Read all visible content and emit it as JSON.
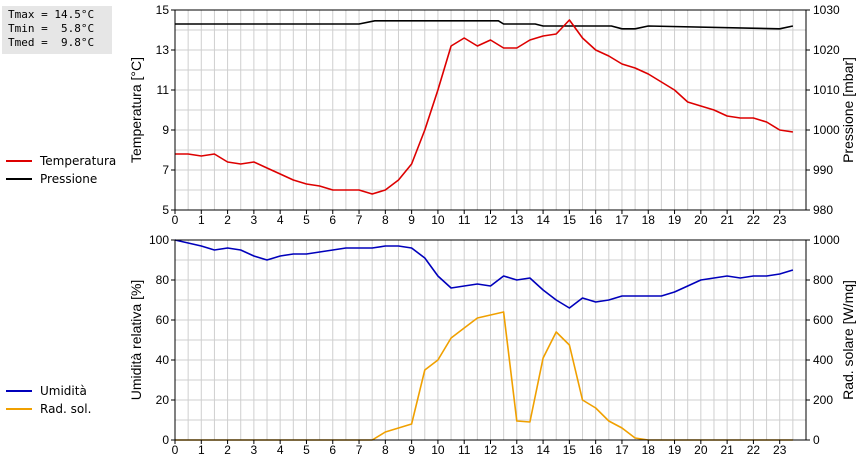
{
  "stats": {
    "tmax": "Tmax = 14.5°C",
    "tmin": "Tmin =  5.8°C",
    "tmed": "Tmed =  9.8°C"
  },
  "chart_data": [
    {
      "type": "line",
      "ylabel": "Temperatura [°C]",
      "y2label": "Pressione [mbar]",
      "xlim": [
        0,
        24
      ],
      "ylim": [
        5,
        15
      ],
      "y2lim": [
        980,
        1030
      ],
      "x_ticks": [
        0,
        1,
        2,
        3,
        4,
        5,
        6,
        7,
        8,
        9,
        10,
        11,
        12,
        13,
        14,
        15,
        16,
        17,
        18,
        19,
        20,
        21,
        22,
        23
      ],
      "y_ticks": [
        5,
        7,
        9,
        11,
        13,
        15
      ],
      "y2_ticks": [
        980,
        990,
        1000,
        1010,
        1020,
        1030
      ],
      "grid": true,
      "legend_position": "left",
      "series": [
        {
          "name": "Temperatura",
          "axis": "left",
          "color": "#dd0000",
          "x": [
            0,
            0.5,
            1,
            1.5,
            2,
            2.5,
            3,
            3.5,
            4,
            4.5,
            5,
            5.5,
            6,
            6.5,
            7,
            7.5,
            8,
            8.5,
            9,
            9.5,
            10,
            10.5,
            11,
            11.5,
            12,
            12.5,
            13,
            13.5,
            14,
            14.5,
            15,
            15.5,
            16,
            16.5,
            17,
            17.5,
            18,
            18.5,
            19,
            19.5,
            20,
            20.5,
            21,
            21.5,
            22,
            22.5,
            23,
            23.5
          ],
          "values": [
            7.8,
            7.8,
            7.7,
            7.8,
            7.4,
            7.3,
            7.4,
            7.1,
            6.8,
            6.5,
            6.3,
            6.2,
            6.0,
            6.0,
            6.0,
            5.8,
            6.0,
            6.5,
            7.3,
            9.0,
            11.0,
            13.2,
            13.6,
            13.2,
            13.5,
            13.1,
            13.1,
            13.5,
            13.7,
            13.8,
            14.5,
            13.6,
            13.0,
            12.7,
            12.3,
            12.1,
            11.8,
            11.4,
            11.0,
            10.4,
            10.2,
            10.0,
            9.7,
            9.6,
            9.6,
            9.4,
            9.0,
            8.9
          ]
        },
        {
          "name": "Pressione",
          "axis": "right",
          "color": "#000000",
          "x": [
            0,
            7,
            7.6,
            12.3,
            12.5,
            13.7,
            14.0,
            16.6,
            17.0,
            17.5,
            18.0,
            23.0,
            23.5
          ],
          "values": [
            1026.5,
            1026.5,
            1027.3,
            1027.3,
            1026.5,
            1026.5,
            1026.0,
            1026.0,
            1025.3,
            1025.3,
            1026.0,
            1025.3,
            1026.0
          ]
        }
      ]
    },
    {
      "type": "line",
      "ylabel": "Umidità relativa [%]",
      "y2label": "Rad. solare [W/mq]",
      "xlim": [
        0,
        24
      ],
      "ylim": [
        0,
        100
      ],
      "y2lim": [
        0,
        1000
      ],
      "x_ticks": [
        0,
        1,
        2,
        3,
        4,
        5,
        6,
        7,
        8,
        9,
        10,
        11,
        12,
        13,
        14,
        15,
        16,
        17,
        18,
        19,
        20,
        21,
        22,
        23
      ],
      "y_ticks": [
        0,
        20,
        40,
        60,
        80,
        100
      ],
      "y2_ticks": [
        0,
        200,
        400,
        600,
        800,
        1000
      ],
      "grid": true,
      "legend_position": "left",
      "series": [
        {
          "name": "Umidità",
          "axis": "left",
          "color": "#0000bb",
          "x": [
            0,
            1,
            1.5,
            2,
            2.5,
            3,
            3.5,
            4,
            4.5,
            5,
            5.5,
            6,
            6.5,
            7,
            7.5,
            8,
            8.5,
            9,
            9.5,
            10,
            10.5,
            11,
            11.5,
            12,
            12.5,
            13,
            13.5,
            14,
            14.5,
            15,
            15.5,
            16,
            16.5,
            17,
            18,
            18.5,
            19,
            19.5,
            20,
            20.5,
            21,
            21.5,
            22,
            22.5,
            23,
            23.5
          ],
          "values": [
            100,
            97,
            95,
            96,
            95,
            92,
            90,
            92,
            93,
            93,
            94,
            95,
            96,
            96,
            96,
            97,
            97,
            96,
            91,
            82,
            76,
            77,
            78,
            77,
            82,
            80,
            81,
            75,
            70,
            66,
            71,
            69,
            70,
            72,
            72,
            72,
            74,
            77,
            80,
            81,
            82,
            81,
            82,
            82,
            83,
            85
          ]
        },
        {
          "name": "Rad. sol.",
          "axis": "right",
          "color": "#f0a000",
          "x": [
            0,
            7.5,
            8.0,
            8.5,
            9.0,
            9.5,
            10.0,
            10.5,
            11.0,
            11.5,
            12.0,
            12.5,
            13.0,
            13.5,
            14.0,
            14.5,
            15.0,
            15.5,
            16.0,
            16.5,
            17.0,
            17.5,
            18.0,
            23.5
          ],
          "values": [
            0,
            0,
            40,
            60,
            80,
            350,
            400,
            510,
            560,
            610,
            625,
            640,
            95,
            90,
            410,
            540,
            475,
            200,
            160,
            95,
            60,
            10,
            0,
            0
          ]
        }
      ]
    }
  ]
}
